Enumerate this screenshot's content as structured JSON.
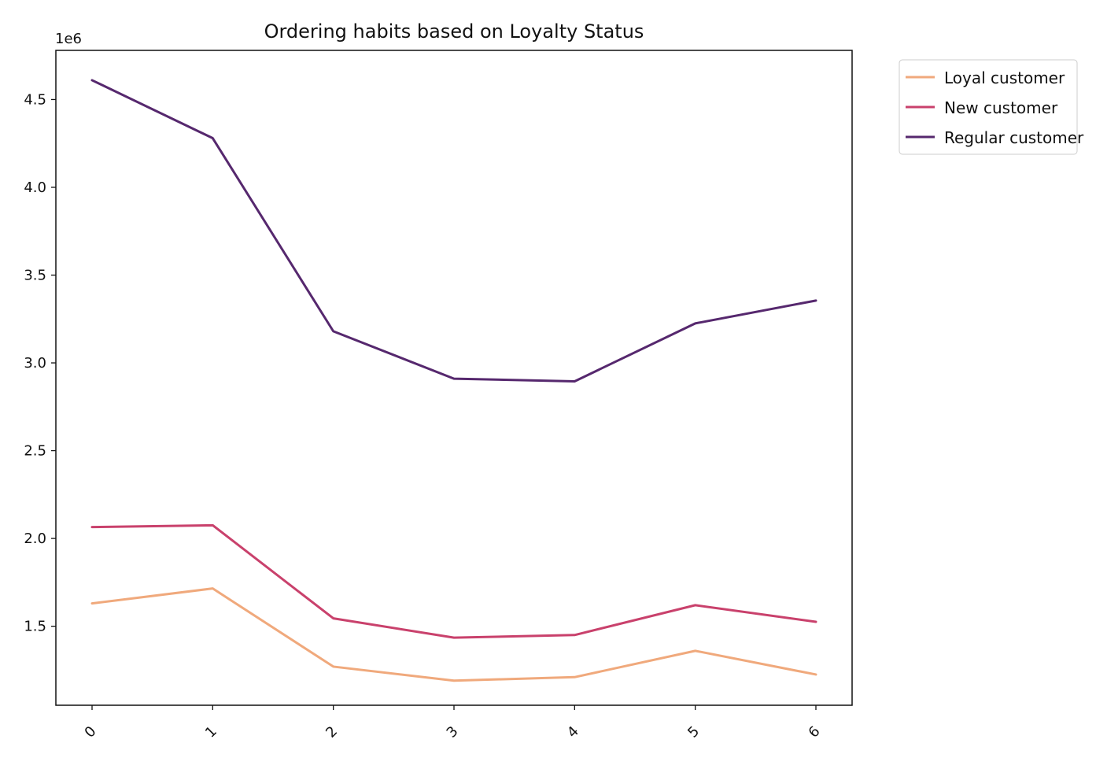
{
  "chart_data": {
    "type": "line",
    "title": "Ordering habits based on Loyalty Status",
    "x": [
      0,
      1,
      2,
      3,
      4,
      5,
      6
    ],
    "x_tick_labels": [
      "0",
      "1",
      "2",
      "3",
      "4",
      "5",
      "6"
    ],
    "x_tick_rotation": 45,
    "xlim": [
      -0.3,
      6.3
    ],
    "xlabel": "",
    "ylabel": "",
    "ylim": [
      1.05,
      4.78
    ],
    "y_ticks": [
      1.5,
      2.0,
      2.5,
      3.0,
      3.5,
      4.0,
      4.5
    ],
    "y_tick_labels": [
      "1.5",
      "2.0",
      "2.5",
      "3.0",
      "3.5",
      "4.0",
      "4.5"
    ],
    "y_scale_label": "1e6",
    "grid": false,
    "legend_position": "upper-right-outside",
    "series": [
      {
        "name": "Loyal customer",
        "color": "#f0a97c",
        "values": [
          1.63,
          1.715,
          1.27,
          1.19,
          1.21,
          1.36,
          1.225
        ]
      },
      {
        "name": "New customer",
        "color": "#c9416c",
        "values": [
          2.065,
          2.075,
          1.545,
          1.435,
          1.45,
          1.62,
          1.525
        ]
      },
      {
        "name": "Regular customer",
        "color": "#56286e",
        "values": [
          4.61,
          4.28,
          3.18,
          2.91,
          2.895,
          3.225,
          3.355
        ]
      }
    ]
  }
}
